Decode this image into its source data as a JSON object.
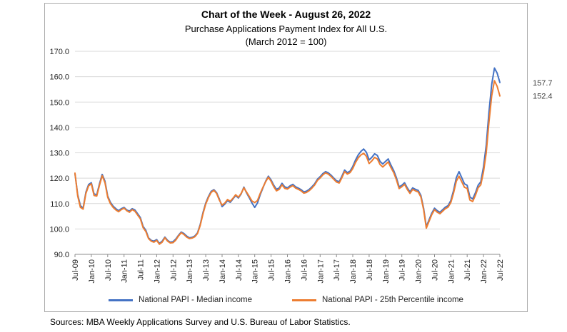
{
  "source_note": "Sources: MBA Weekly Applications Survey and U.S. Bureau of Labor Statistics.",
  "chart_data": {
    "type": "line",
    "title": "Chart of the Week - August 26, 2022",
    "subtitle": "Purchase Applications Payment Index for All U.S.",
    "subtitle_note": "(March 2012 = 100)",
    "xlabel": "",
    "ylabel": "",
    "ylim": [
      90,
      170
    ],
    "ytick_step": 10,
    "ytick_labels": [
      "90.0",
      "100.0",
      "110.0",
      "120.0",
      "130.0",
      "140.0",
      "150.0",
      "160.0",
      "170.0"
    ],
    "x_tick_every": 6,
    "grid": "horizontal",
    "legend_position": "bottom",
    "x": [
      "Jul-09",
      "Aug-09",
      "Sep-09",
      "Oct-09",
      "Nov-09",
      "Dec-09",
      "Jan-10",
      "Feb-10",
      "Mar-10",
      "Apr-10",
      "May-10",
      "Jun-10",
      "Jul-10",
      "Aug-10",
      "Sep-10",
      "Oct-10",
      "Nov-10",
      "Dec-10",
      "Jan-11",
      "Feb-11",
      "Mar-11",
      "Apr-11",
      "May-11",
      "Jun-11",
      "Jul-11",
      "Aug-11",
      "Sep-11",
      "Oct-11",
      "Nov-11",
      "Dec-11",
      "Jan-12",
      "Feb-12",
      "Mar-12",
      "Apr-12",
      "May-12",
      "Jun-12",
      "Jul-12",
      "Aug-12",
      "Sep-12",
      "Oct-12",
      "Nov-12",
      "Dec-12",
      "Jan-13",
      "Feb-13",
      "Mar-13",
      "Apr-13",
      "May-13",
      "Jun-13",
      "Jul-13",
      "Aug-13",
      "Sep-13",
      "Oct-13",
      "Nov-13",
      "Dec-13",
      "Jan-14",
      "Feb-14",
      "Mar-14",
      "Apr-14",
      "May-14",
      "Jun-14",
      "Jul-14",
      "Aug-14",
      "Sep-14",
      "Oct-14",
      "Nov-14",
      "Dec-14",
      "Jan-15",
      "Feb-15",
      "Mar-15",
      "Apr-15",
      "May-15",
      "Jun-15",
      "Jul-15",
      "Aug-15",
      "Sep-15",
      "Oct-15",
      "Nov-15",
      "Dec-15",
      "Jan-16",
      "Feb-16",
      "Mar-16",
      "Apr-16",
      "May-16",
      "Jun-16",
      "Jul-16",
      "Aug-16",
      "Sep-16",
      "Oct-16",
      "Nov-16",
      "Dec-16",
      "Jan-17",
      "Feb-17",
      "Mar-17",
      "Apr-17",
      "May-17",
      "Jun-17",
      "Jul-17",
      "Aug-17",
      "Sep-17",
      "Oct-17",
      "Nov-17",
      "Dec-17",
      "Jan-18",
      "Feb-18",
      "Mar-18",
      "Apr-18",
      "May-18",
      "Jun-18",
      "Jul-18",
      "Aug-18",
      "Sep-18",
      "Oct-18",
      "Nov-18",
      "Dec-18",
      "Jan-19",
      "Feb-19",
      "Mar-19",
      "Apr-19",
      "May-19",
      "Jun-19",
      "Jul-19",
      "Aug-19",
      "Sep-19",
      "Oct-19",
      "Nov-19",
      "Dec-19",
      "Jan-20",
      "Feb-20",
      "Mar-20",
      "Apr-20",
      "May-20",
      "Jun-20",
      "Jul-20",
      "Aug-20",
      "Sep-20",
      "Oct-20",
      "Nov-20",
      "Dec-20",
      "Jan-21",
      "Feb-21",
      "Mar-21",
      "Apr-21",
      "May-21",
      "Jun-21",
      "Jul-21",
      "Aug-21",
      "Sep-21",
      "Oct-21",
      "Nov-21",
      "Dec-21",
      "Jan-22",
      "Feb-22",
      "Mar-22",
      "Apr-22",
      "May-22",
      "Jun-22",
      "Jul-22"
    ],
    "series": [
      {
        "name": "National PAPI - Median income",
        "color": "#4472C4",
        "end_label": "157.7",
        "values": [
          121.8,
          113.5,
          109.2,
          108.2,
          114.5,
          117.5,
          118.2,
          113.8,
          113.5,
          117.8,
          121.5,
          118.8,
          113.0,
          110.5,
          109.0,
          108.0,
          107.2,
          108.0,
          108.5,
          107.5,
          107.0,
          108.0,
          107.5,
          106.0,
          104.5,
          101.0,
          99.5,
          96.5,
          95.5,
          95.2,
          95.8,
          94.3,
          95.2,
          96.8,
          95.5,
          94.8,
          95.0,
          96.0,
          97.5,
          98.8,
          98.2,
          97.2,
          96.5,
          96.7,
          97.2,
          98.5,
          101.8,
          106.5,
          110.2,
          112.8,
          114.8,
          115.5,
          114.3,
          111.8,
          108.8,
          109.8,
          111.2,
          110.5,
          111.8,
          113.2,
          112.2,
          113.8,
          116.5,
          114.2,
          112.3,
          110.2,
          108.5,
          110.2,
          113.5,
          116.2,
          118.8,
          120.8,
          119.3,
          117.2,
          115.6,
          116.2,
          118.0,
          116.6,
          116.2,
          117.0,
          117.6,
          116.6,
          116.1,
          115.5,
          114.6,
          114.9,
          115.6,
          116.6,
          117.8,
          119.6,
          120.6,
          121.8,
          122.6,
          122.1,
          121.2,
          120.1,
          119.0,
          118.6,
          120.8,
          123.2,
          122.2,
          122.8,
          124.6,
          127.2,
          129.2,
          130.6,
          131.5,
          130.2,
          127.2,
          128.2,
          129.6,
          129.0,
          126.6,
          125.6,
          126.6,
          127.6,
          125.2,
          123.0,
          120.2,
          116.6,
          117.2,
          118.2,
          116.2,
          114.6,
          116.2,
          115.6,
          115.2,
          113.2,
          108.2,
          100.9,
          103.6,
          106.2,
          108.2,
          107.2,
          106.6,
          107.6,
          108.6,
          109.2,
          111.2,
          115.2,
          120.2,
          122.6,
          120.2,
          117.8,
          117.2,
          112.6,
          111.8,
          114.2,
          117.2,
          118.6,
          124.5,
          133.0,
          146.0,
          157.0,
          163.4,
          161.4,
          157.7
        ]
      },
      {
        "name": "National PAPI - 25th Percentile income",
        "color": "#ED7D31",
        "end_label": "152.4",
        "values": [
          122.0,
          113.0,
          108.5,
          107.8,
          114.0,
          117.0,
          117.8,
          113.2,
          113.0,
          117.2,
          121.0,
          118.2,
          112.5,
          110.0,
          108.5,
          107.5,
          106.8,
          107.6,
          108.2,
          107.2,
          106.6,
          107.6,
          107.0,
          105.5,
          104.0,
          100.5,
          99.0,
          96.2,
          95.2,
          94.8,
          95.5,
          94.0,
          94.8,
          96.5,
          95.2,
          94.5,
          94.6,
          95.6,
          97.2,
          98.5,
          97.8,
          96.8,
          96.2,
          96.4,
          96.9,
          98.2,
          101.4,
          106.0,
          109.8,
          112.4,
          114.4,
          115.2,
          114.0,
          111.4,
          109.4,
          110.2,
          111.6,
          110.9,
          112.1,
          113.5,
          112.5,
          114.0,
          116.2,
          114.5,
          112.8,
          111.0,
          110.4,
          111.2,
          114.0,
          116.4,
          118.6,
          120.4,
          118.8,
          116.6,
          115.0,
          115.6,
          117.4,
          116.0,
          115.7,
          116.5,
          117.1,
          116.1,
          115.6,
          115.0,
          114.1,
          114.4,
          115.1,
          116.1,
          117.3,
          119.1,
          120.1,
          121.3,
          122.1,
          121.6,
          120.7,
          119.6,
          118.5,
          118.1,
          120.2,
          122.6,
          121.6,
          122.2,
          123.8,
          126.2,
          128.0,
          129.2,
          129.8,
          128.6,
          125.8,
          126.8,
          128.2,
          127.6,
          125.4,
          124.4,
          125.4,
          126.4,
          124.2,
          122.2,
          119.4,
          115.9,
          116.6,
          117.6,
          115.6,
          114.0,
          115.6,
          115.0,
          114.6,
          112.6,
          107.6,
          100.3,
          103.0,
          105.6,
          107.6,
          106.6,
          106.0,
          107.0,
          108.0,
          108.6,
          110.4,
          114.2,
          118.8,
          120.8,
          118.6,
          116.4,
          116.0,
          111.4,
          110.8,
          113.2,
          116.2,
          117.4,
          122.5,
          130.0,
          142.0,
          152.5,
          158.4,
          156.2,
          152.4
        ]
      }
    ]
  }
}
